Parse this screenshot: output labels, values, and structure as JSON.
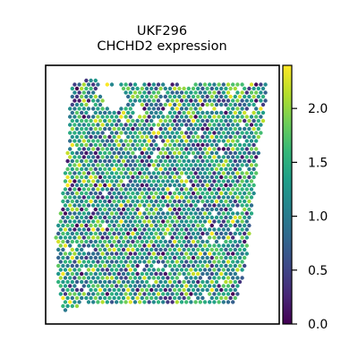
{
  "chart_data": {
    "type": "scatter",
    "title": "UKF296",
    "subtitle": "CHCHD2 expression",
    "xlabel": "",
    "ylabel": "",
    "grid": false,
    "colormap": "viridis",
    "color_range": [
      0.0,
      2.4
    ],
    "colorbar_ticks": [
      "0.0",
      "0.5",
      "1.0",
      "1.5",
      "2.0"
    ],
    "colorbar_tick_values": [
      0.0,
      0.5,
      1.0,
      1.5,
      2.0
    ],
    "spot_value_distribution": {
      "typical_min": 0.3,
      "typical_max": 2.4,
      "median": 1.3
    }
  },
  "colors": {
    "viridis": [
      "#440154",
      "#482878",
      "#3e4989",
      "#31688e",
      "#26828e",
      "#1f9e89",
      "#35b779",
      "#6ece58",
      "#b5de2b",
      "#fde725"
    ],
    "frame": "#000000"
  }
}
